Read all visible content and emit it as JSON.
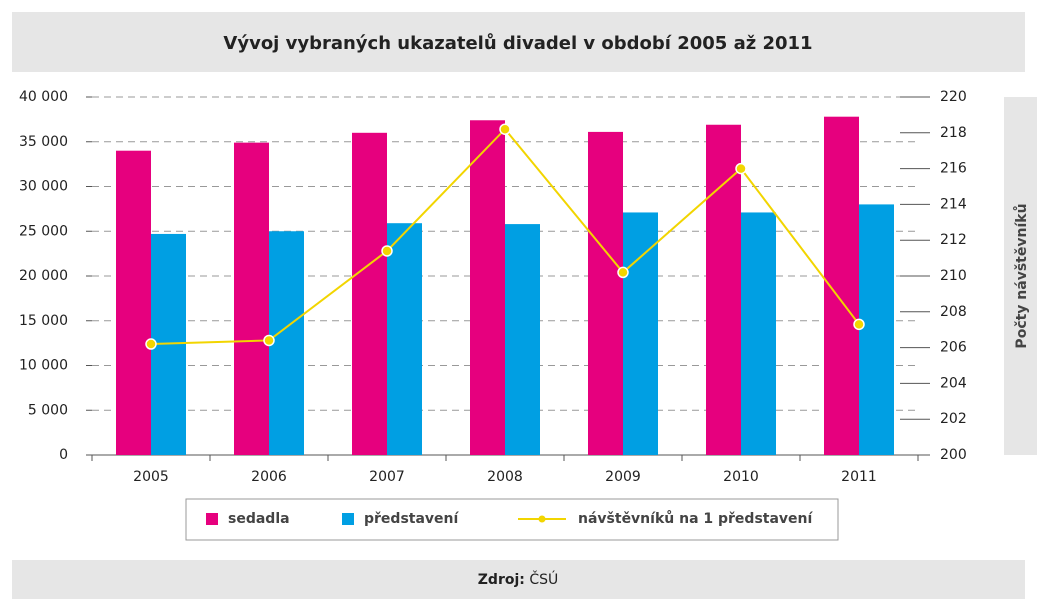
{
  "chart_data": {
    "type": "bar_line",
    "title": "Vývoj vybraných ukazatelů divadel v období 2005 až 2011",
    "y2_label": "Počty návštěvníků",
    "source_label": "Zdroj:",
    "source": "ČSÚ",
    "categories": [
      "2005",
      "2006",
      "2007",
      "2008",
      "2009",
      "2010",
      "2011"
    ],
    "series": [
      {
        "name": "sedadla",
        "color": "#e6007e",
        "type": "bar",
        "values": [
          34000,
          34900,
          36000,
          37400,
          36100,
          36900,
          37800
        ]
      },
      {
        "name": "představení",
        "color": "#009fe3",
        "type": "bar",
        "values": [
          24700,
          25000,
          25900,
          25800,
          27100,
          27100,
          28000
        ]
      },
      {
        "name": "návštěvníků na 1 představení",
        "color": "#f2d500",
        "type": "line",
        "axis": "y2",
        "values": [
          206.2,
          206.4,
          211.4,
          218.2,
          210.2,
          216.0,
          207.3
        ]
      }
    ],
    "ylim": [
      0,
      40000
    ],
    "yticks": [
      0,
      {
        "value": 5000,
        "label": "5 000"
      },
      {
        "value": 10000,
        "label": "10 000"
      },
      {
        "value": 15000,
        "label": "15 000"
      },
      {
        "value": 20000,
        "label": "20 000"
      },
      {
        "value": 25000,
        "label": "25 000"
      },
      {
        "value": 30000,
        "label": "30 000"
      },
      {
        "value": 35000,
        "label": "35 000"
      },
      {
        "value": 40000,
        "label": "40 000"
      }
    ],
    "y2lim": [
      200,
      220
    ],
    "y2ticks": [
      200,
      202,
      204,
      206,
      208,
      210,
      212,
      214,
      216,
      218,
      220
    ],
    "grid": true,
    "legend": "bottom"
  }
}
